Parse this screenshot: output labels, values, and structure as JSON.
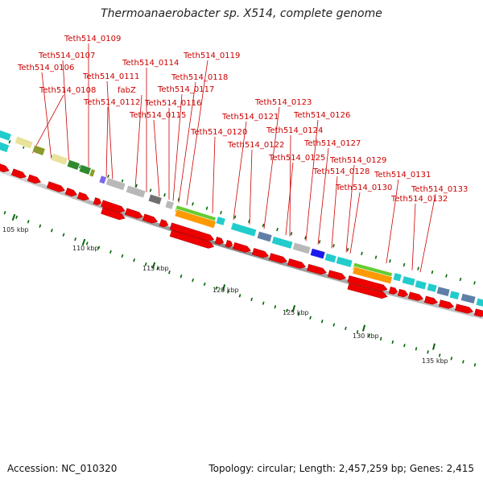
{
  "title": "Thermoanaerobacter sp. X514, complete genome",
  "accession": "Accession: NC_010320",
  "topology": "Topology: circular; Length: 2,457,259 bp; Genes: 2,415",
  "gene_labels": [
    "Teth514_0109",
    "Teth514_0107",
    "Teth514_0106",
    "Teth514_0108",
    "Teth514_0114",
    "Teth514_0111",
    "fabZ",
    "Teth514_0112",
    "Teth514_0119",
    "Teth514_0118",
    "Teth514_0117",
    "Teth514_0116",
    "Teth514_0115",
    "Teth514_0120",
    "Teth514_0123",
    "Teth514_0121",
    "Teth514_0126",
    "Teth514_0124",
    "Teth514_0122",
    "Teth514_0127",
    "Teth514_0125",
    "Teth514_0129",
    "Teth514_0128",
    "Teth514_0131",
    "Teth514_0130",
    "Teth514_0133",
    "Teth514_0132"
  ],
  "tick_labels": [
    "105 kbp",
    "110 kbp",
    "115 kbp",
    "120 kbp",
    "125 kbp",
    "130 kbp",
    "135 kbp"
  ],
  "colors": {
    "label": "#cc0000",
    "cds_arrow": "#ee0000",
    "tick": "#006600",
    "cyan": "#22cccc",
    "khaki": "#e8e29a",
    "olive": "#8b9a2c",
    "green": "#2e8b2e",
    "gray": "#b8b8b8",
    "dark_gray": "#707070",
    "purple": "#7b68ee",
    "blue": "#1a1aee",
    "steel": "#5f7fa8",
    "lime": "#66cc33",
    "orange": "#ff9900"
  }
}
